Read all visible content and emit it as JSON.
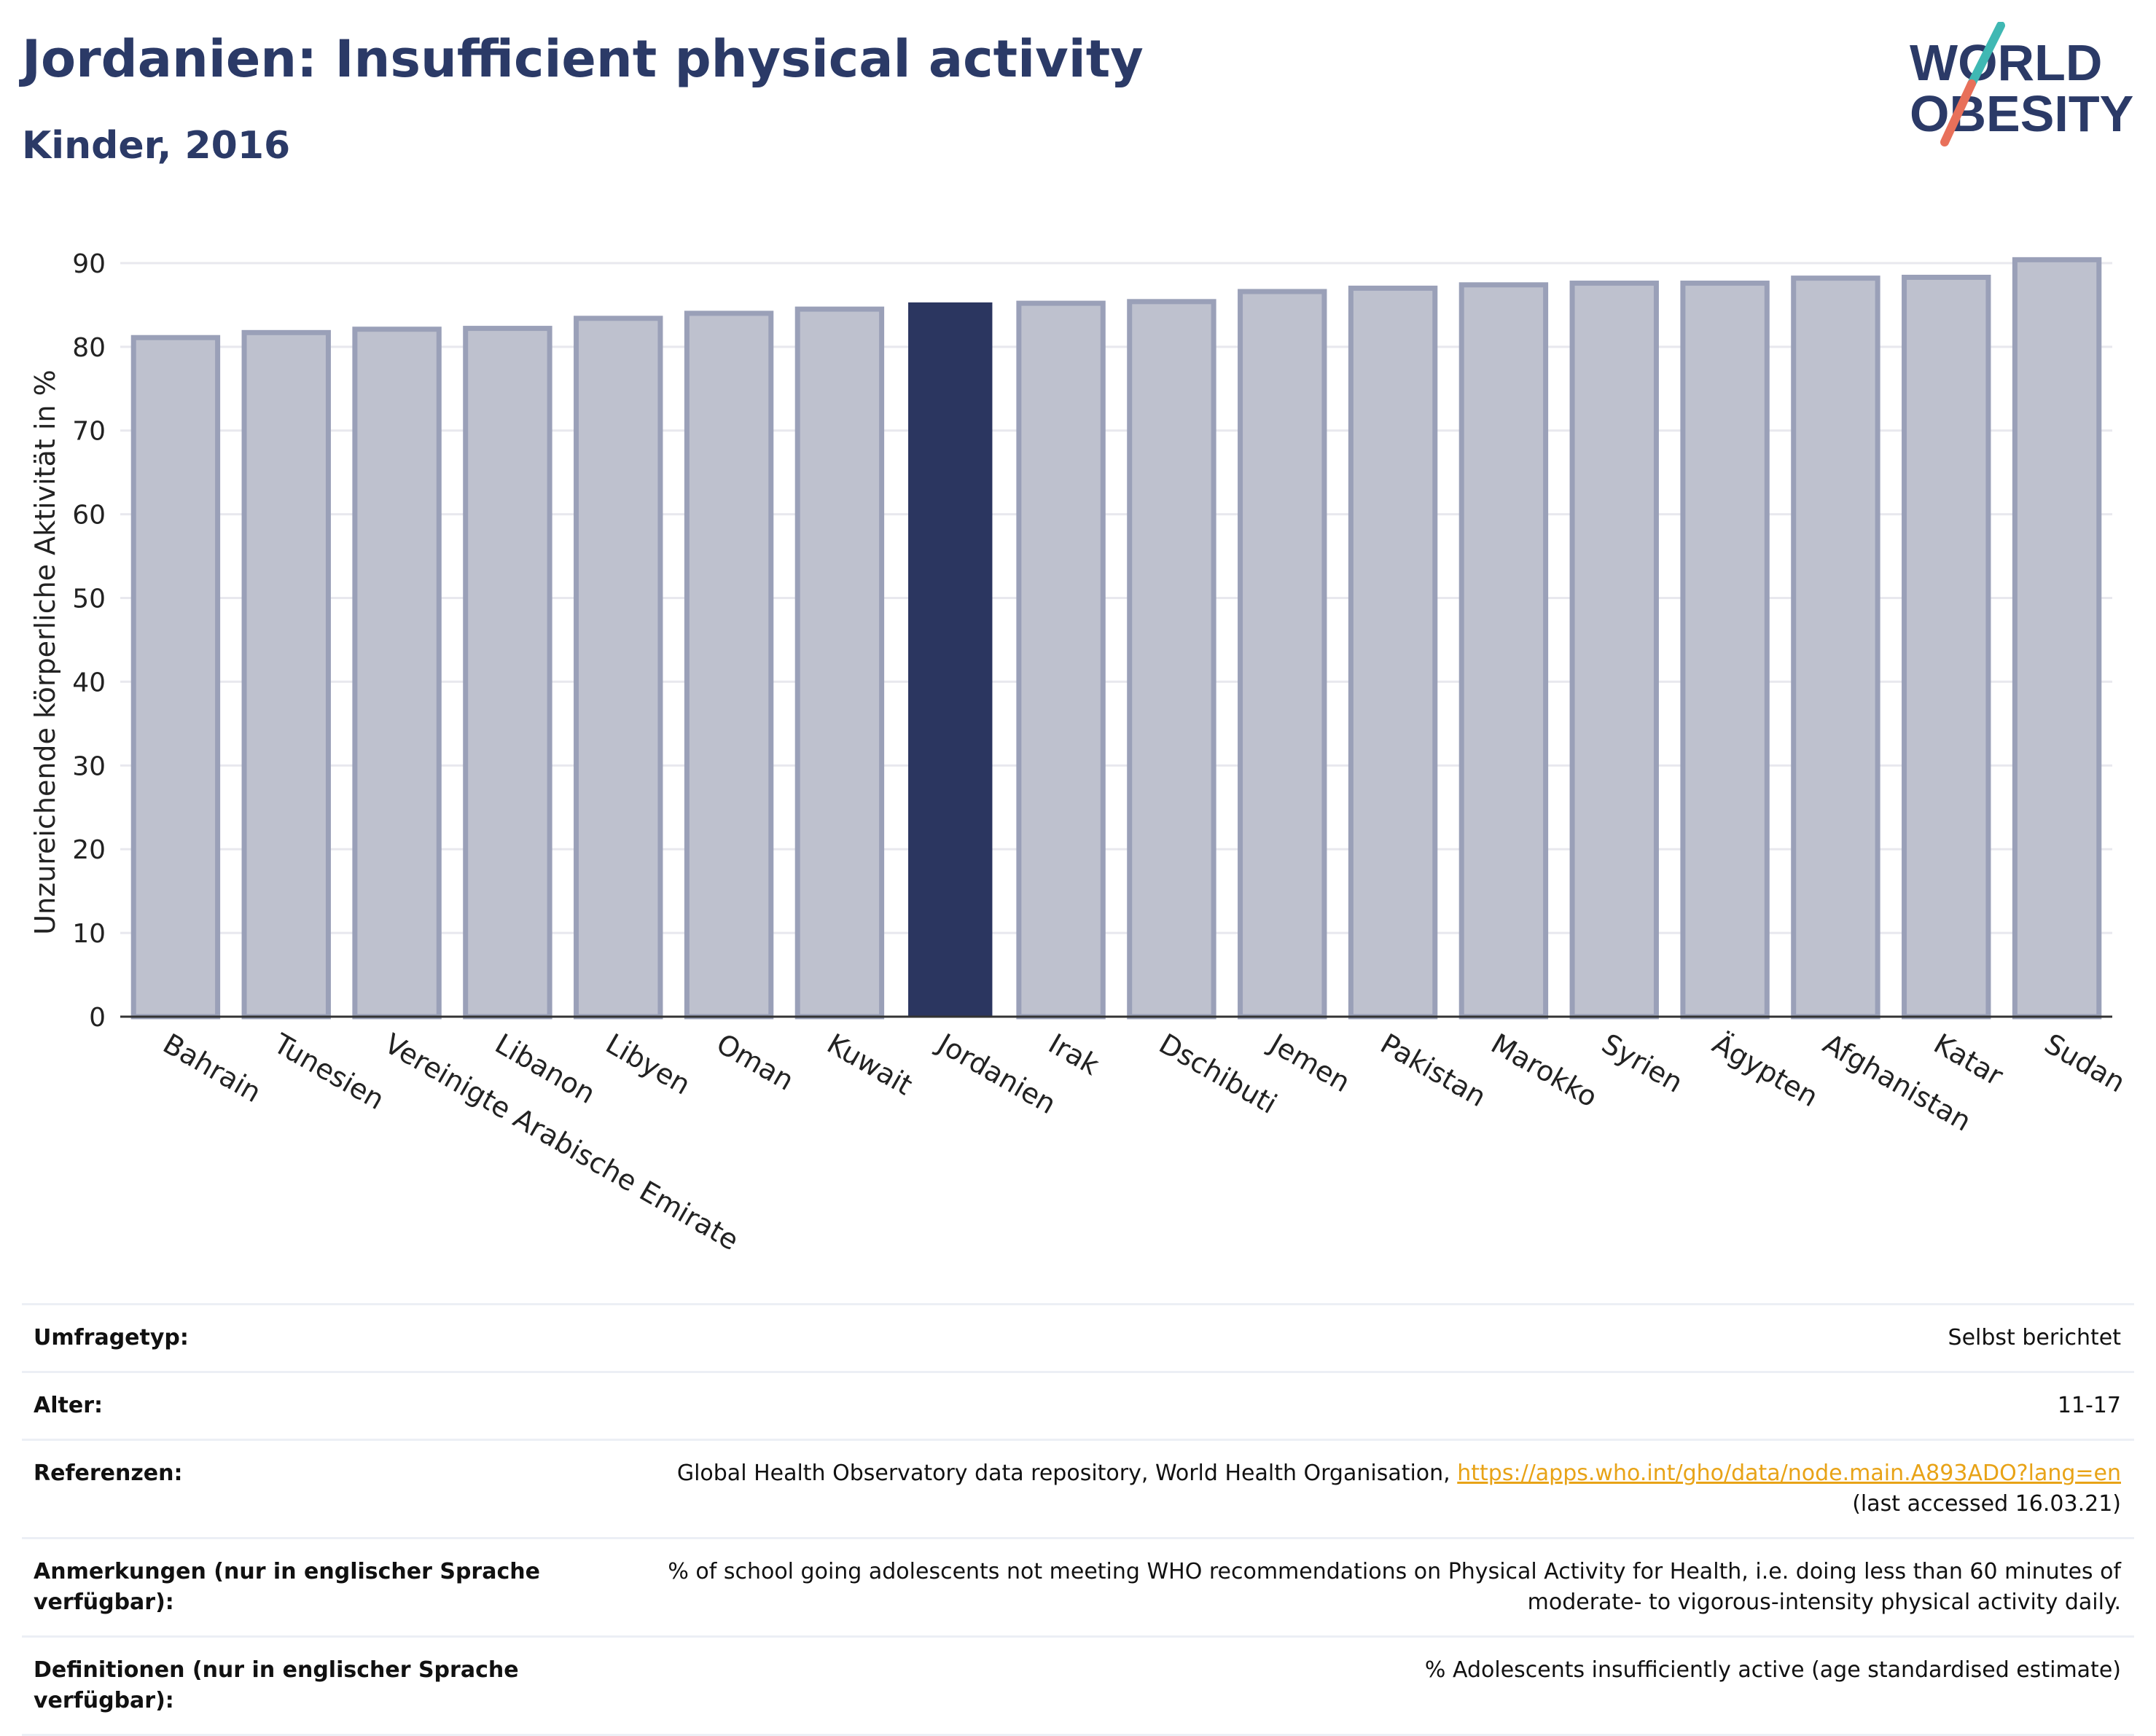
{
  "header": {
    "title": "Jordanien: Insufficient physical activity",
    "subtitle": "Kinder, 2016"
  },
  "logo": {
    "line1": "WORLD",
    "line2": "OBESITY",
    "colors": {
      "text": "#2b3a67",
      "slash_top": "#3fb8b3",
      "slash_bottom": "#e8705a"
    }
  },
  "chart_data": {
    "type": "bar",
    "ylabel": "Unzureichende körperliche Aktivität in %",
    "xlabel": "",
    "ylim": [
      0,
      90
    ],
    "yticks": [
      0,
      10,
      20,
      30,
      40,
      50,
      60,
      70,
      80,
      90
    ],
    "grid": true,
    "highlight": "Jordanien",
    "colors": {
      "bar": "#bec1ce",
      "bar_edge": "#9aa0b8",
      "highlight": "#2b3660",
      "axis": "#333333",
      "grid": "#e8e8ee"
    },
    "categories": [
      "Bahrain",
      "Tunesien",
      "Vereinigte Arabische Emirate",
      "Libanon",
      "Libyen",
      "Oman",
      "Kuwait",
      "Jordanien",
      "Irak",
      "Dschibuti",
      "Jemen",
      "Pakistan",
      "Marokko",
      "Syrien",
      "Ägypten",
      "Afghanistan",
      "Katar",
      "Sudan"
    ],
    "values": [
      81.1,
      81.7,
      82.1,
      82.2,
      83.4,
      84.0,
      84.5,
      85.3,
      85.2,
      85.4,
      86.6,
      87.0,
      87.4,
      87.6,
      87.6,
      88.2,
      88.3,
      90.4
    ]
  },
  "meta": [
    {
      "label": "Umfragetyp:",
      "value": "Selbst berichtet"
    },
    {
      "label": "Alter:",
      "value": "11-17"
    },
    {
      "label": "Referenzen:",
      "value": "Global Health Observatory data repository, World Health Organisation,",
      "link": "https://apps.who.int/gho/data/node.main.A893ADO?lang=en",
      "value2": "(last accessed 16.03.21)"
    },
    {
      "label": "Anmerkungen (nur in englischer Sprache verfügbar):",
      "value": "% of school going adolescents not meeting WHO recommendations on Physical Activity for Health, i.e. doing less than 60 minutes of moderate- to vigorous-intensity physical activity daily."
    },
    {
      "label": "Definitionen (nur in englischer Sprache verfügbar):",
      "value": "% Adolescents insufficiently active (age standardised estimate)"
    }
  ]
}
